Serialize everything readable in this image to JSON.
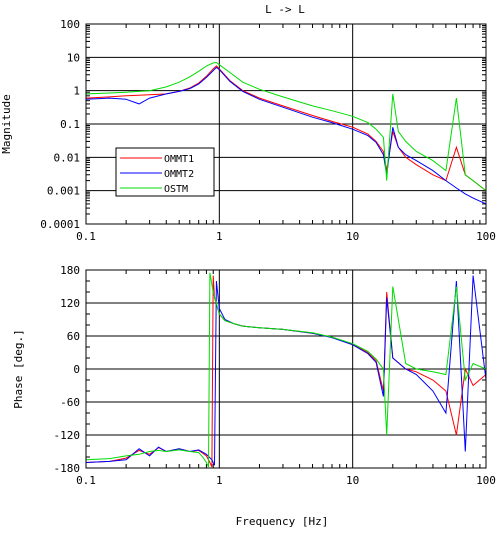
{
  "title": "L -> L",
  "xlabel": "Frequency [Hz]",
  "colors": {
    "OMMT1": "#ff0000",
    "OMMT2": "#0000ff",
    "OSTM": "#00dd00"
  },
  "chart_data": [
    {
      "type": "line",
      "title": "L -> L",
      "xlabel": "",
      "ylabel": "Magnitude",
      "xscale": "log",
      "yscale": "log",
      "xlim": [
        0.1,
        100
      ],
      "ylim": [
        0.0001,
        100
      ],
      "xticks": [
        "0.1",
        "1",
        "10",
        "100"
      ],
      "yticks": [
        "0.0001",
        "0.001",
        "0.01",
        "0.1",
        "1",
        "10",
        "100"
      ],
      "grid": true,
      "legend": "lower-left",
      "series": [
        {
          "name": "OMMT1",
          "color": "#ff0000",
          "x": [
            0.1,
            0.15,
            0.2,
            0.3,
            0.4,
            0.5,
            0.6,
            0.7,
            0.8,
            0.9,
            0.95,
            1.0,
            1.2,
            1.5,
            2,
            3,
            5,
            7,
            10,
            13,
            15,
            17,
            18,
            20,
            22,
            25,
            30,
            40,
            50,
            60,
            70,
            80,
            100
          ],
          "y": [
            0.6,
            0.65,
            0.7,
            0.75,
            0.8,
            0.95,
            1.2,
            1.7,
            2.7,
            4.5,
            5.5,
            4.5,
            2.0,
            1.0,
            0.6,
            0.35,
            0.18,
            0.12,
            0.08,
            0.05,
            0.03,
            0.015,
            0.004,
            0.06,
            0.02,
            0.01,
            0.006,
            0.003,
            0.002,
            0.02,
            0.003,
            0.002,
            0.001
          ]
        },
        {
          "name": "OMMT2",
          "color": "#0000ff",
          "x": [
            0.1,
            0.15,
            0.2,
            0.25,
            0.3,
            0.4,
            0.5,
            0.6,
            0.7,
            0.8,
            0.9,
            0.95,
            1.0,
            1.2,
            1.5,
            2,
            3,
            5,
            7,
            10,
            13,
            15,
            17,
            18,
            20,
            22,
            25,
            30,
            40,
            50,
            60,
            70,
            80,
            100
          ],
          "y": [
            0.55,
            0.6,
            0.55,
            0.4,
            0.6,
            0.8,
            0.95,
            1.15,
            1.6,
            2.5,
            4.0,
            5.0,
            4.3,
            1.9,
            0.95,
            0.55,
            0.32,
            0.16,
            0.11,
            0.07,
            0.045,
            0.028,
            0.012,
            0.003,
            0.08,
            0.02,
            0.012,
            0.008,
            0.004,
            0.002,
            0.0012,
            0.0008,
            0.0006,
            0.0004
          ]
        },
        {
          "name": "OSTM",
          "color": "#00dd00",
          "x": [
            0.1,
            0.15,
            0.2,
            0.3,
            0.4,
            0.5,
            0.6,
            0.7,
            0.8,
            0.9,
            0.95,
            1.0,
            1.2,
            1.5,
            2,
            3,
            5,
            7,
            10,
            13,
            15,
            17,
            18,
            20,
            22,
            25,
            30,
            40,
            50,
            60,
            70,
            80,
            100
          ],
          "y": [
            0.8,
            0.85,
            0.9,
            1.0,
            1.3,
            1.8,
            2.6,
            3.8,
            5.5,
            6.8,
            7.0,
            6.0,
            3.5,
            1.8,
            1.1,
            0.65,
            0.35,
            0.25,
            0.17,
            0.11,
            0.07,
            0.04,
            0.002,
            0.8,
            0.06,
            0.03,
            0.015,
            0.008,
            0.004,
            0.6,
            0.003,
            0.002,
            0.001
          ]
        }
      ]
    },
    {
      "type": "line",
      "title": "",
      "xlabel": "Frequency [Hz]",
      "ylabel": "Phase [deg.]",
      "xscale": "log",
      "xlim": [
        0.1,
        100
      ],
      "ylim": [
        -180,
        180
      ],
      "xticks": [
        "0.1",
        "1",
        "10",
        "100"
      ],
      "yticks": [
        "180",
        "120",
        "60",
        "0",
        "-60",
        "-120",
        "-180"
      ],
      "grid": true,
      "series": [
        {
          "name": "OMMT1",
          "color": "#ff0000",
          "x": [
            0.1,
            0.15,
            0.2,
            0.25,
            0.3,
            0.35,
            0.4,
            0.5,
            0.6,
            0.7,
            0.8,
            0.85,
            0.88,
            0.9,
            0.92,
            1.0,
            1.1,
            1.3,
            1.5,
            2,
            3,
            5,
            7,
            10,
            13,
            15,
            17,
            18,
            20,
            25,
            30,
            40,
            50,
            60,
            70,
            80,
            100
          ],
          "y": [
            -170,
            -168,
            -162,
            -148,
            -155,
            -143,
            -150,
            -145,
            -150,
            -148,
            -158,
            -170,
            -178,
            170,
            130,
            100,
            88,
            82,
            78,
            75,
            72,
            65,
            58,
            45,
            30,
            15,
            -40,
            140,
            20,
            0,
            -5,
            -20,
            -40,
            -120,
            0,
            -30,
            -10
          ]
        },
        {
          "name": "OMMT2",
          "color": "#0000ff",
          "x": [
            0.1,
            0.15,
            0.2,
            0.25,
            0.3,
            0.35,
            0.4,
            0.5,
            0.6,
            0.7,
            0.8,
            0.88,
            0.92,
            0.95,
            1.0,
            1.1,
            1.3,
            1.5,
            2,
            3,
            5,
            7,
            10,
            13,
            15,
            17,
            18,
            20,
            25,
            30,
            40,
            50,
            60,
            70,
            80,
            100
          ],
          "y": [
            -170,
            -168,
            -165,
            -145,
            -158,
            -142,
            -150,
            -145,
            -150,
            -147,
            -155,
            -165,
            -175,
            160,
            110,
            90,
            82,
            78,
            75,
            72,
            65,
            57,
            44,
            28,
            12,
            -50,
            130,
            20,
            0,
            -10,
            -40,
            -80,
            160,
            -150,
            170,
            -20
          ]
        },
        {
          "name": "OSTM",
          "color": "#00dd00",
          "x": [
            0.1,
            0.15,
            0.2,
            0.25,
            0.3,
            0.35,
            0.4,
            0.5,
            0.6,
            0.7,
            0.75,
            0.8,
            0.83,
            0.85,
            0.9,
            1.0,
            1.1,
            1.3,
            1.5,
            2,
            3,
            5,
            7,
            10,
            13,
            15,
            17,
            18,
            20,
            25,
            30,
            40,
            50,
            60,
            70,
            80,
            100
          ],
          "y": [
            -165,
            -163,
            -158,
            -155,
            -150,
            -148,
            -150,
            -147,
            -150,
            -152,
            -160,
            -170,
            -178,
            175,
            140,
            100,
            88,
            82,
            78,
            75,
            72,
            66,
            58,
            46,
            32,
            18,
            0,
            -120,
            150,
            10,
            0,
            -5,
            -10,
            150,
            -20,
            10,
            0
          ]
        }
      ]
    }
  ]
}
